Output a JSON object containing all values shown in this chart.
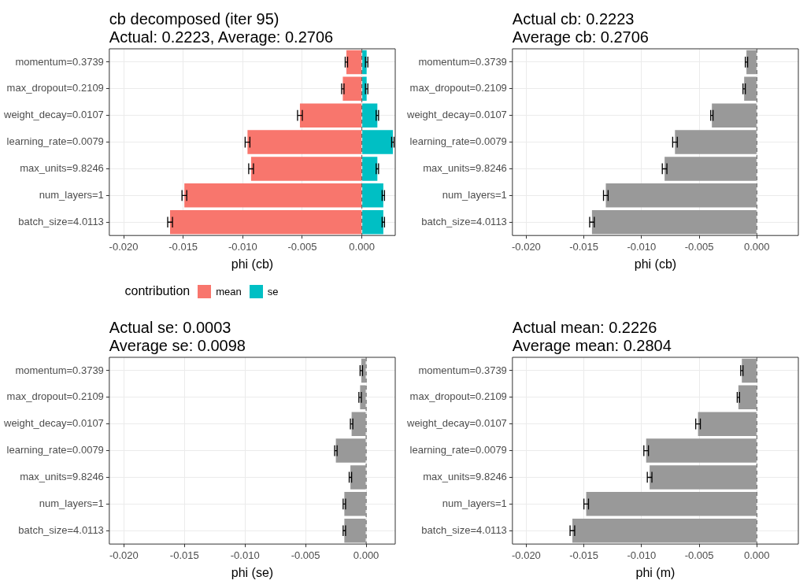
{
  "chart_data": [
    {
      "type": "bar",
      "orientation": "horizontal",
      "stacked": true,
      "title": "cb decomposed (iter 95)\nActual: 0.2223, Average: 0.2706",
      "xlabel": "phi (cb)",
      "legend_title": "contribution",
      "legend": "bottom",
      "grid": true,
      "categories": [
        "momentum=0.3739",
        "max_dropout=0.2109",
        "weight_decay=0.0107",
        "learning_rate=0.0079",
        "max_units=9.8246",
        "num_layers=1",
        "batch_size=4.0113"
      ],
      "series": [
        {
          "name": "mean",
          "color": "#f8766d",
          "values": [
            -0.0013,
            -0.0016,
            -0.0052,
            -0.0096,
            -0.0093,
            -0.0149,
            -0.0161
          ],
          "errors": [
            0.0001,
            0.0001,
            0.0002,
            0.0002,
            0.0002,
            0.0002,
            0.0002
          ]
        },
        {
          "name": "se",
          "color": "#00bfc4",
          "values": [
            0.0004,
            0.0004,
            0.0013,
            0.0026,
            0.0013,
            0.0018,
            0.0018
          ],
          "errors": [
            0.0001,
            0.0001,
            0.0001,
            0.0001,
            0.0001,
            0.0001,
            0.0001
          ]
        }
      ],
      "xlim": [
        -0.0212,
        0.0028
      ],
      "xticks": [
        {
          "value": -0.02,
          "label": "-0.020"
        },
        {
          "value": -0.015,
          "label": "-0.015"
        },
        {
          "value": -0.01,
          "label": "-0.010"
        },
        {
          "value": -0.005,
          "label": "-0.005"
        },
        {
          "value": 0,
          "label": "0.000"
        }
      ],
      "ref_lines": [
        {
          "axis": "x",
          "value": 0,
          "line_style": "dashed",
          "color": "#555555"
        }
      ]
    },
    {
      "type": "bar",
      "orientation": "horizontal",
      "title": "Actual cb: 0.2223\nAverage cb: 0.2706",
      "xlabel": "phi (cb)",
      "grid": true,
      "categories": [
        "momentum=0.3739",
        "max_dropout=0.2109",
        "weight_decay=0.0107",
        "learning_rate=0.0079",
        "max_units=9.8246",
        "num_layers=1",
        "batch_size=4.0113"
      ],
      "series": [
        {
          "color": "#999999",
          "values": [
            -0.0009,
            -0.0011,
            -0.0039,
            -0.0071,
            -0.008,
            -0.0131,
            -0.0143
          ],
          "errors": [
            0.0001,
            0.0001,
            0.0001,
            0.0002,
            0.0002,
            0.0002,
            0.0002
          ]
        }
      ],
      "xlim": [
        -0.0212,
        0.0036
      ],
      "xticks": [
        {
          "value": -0.02,
          "label": "-0.020"
        },
        {
          "value": -0.015,
          "label": "-0.015"
        },
        {
          "value": -0.01,
          "label": "-0.010"
        },
        {
          "value": -0.005,
          "label": "-0.005"
        },
        {
          "value": 0,
          "label": "0.000"
        }
      ],
      "ref_lines": [
        {
          "axis": "x",
          "value": 0,
          "line_style": "dashed",
          "color": "#555555"
        }
      ]
    },
    {
      "type": "bar",
      "orientation": "horizontal",
      "title": "Actual se: 0.0003\nAverage se: 0.0098",
      "xlabel": "phi (se)",
      "grid": true,
      "categories": [
        "momentum=0.3739",
        "max_dropout=0.2109",
        "weight_decay=0.0107",
        "learning_rate=0.0079",
        "max_units=9.8246",
        "num_layers=1",
        "batch_size=4.0113"
      ],
      "series": [
        {
          "color": "#999999",
          "values": [
            -0.0004,
            -0.0005,
            -0.0012,
            -0.0025,
            -0.0013,
            -0.0018,
            -0.0018
          ],
          "errors": [
            0.0001,
            0.0001,
            0.0001,
            0.0001,
            0.0001,
            0.0001,
            0.0001
          ]
        }
      ],
      "xlim": [
        -0.0212,
        0.0024
      ],
      "xticks": [
        {
          "value": -0.02,
          "label": "-0.020"
        },
        {
          "value": -0.015,
          "label": "-0.015"
        },
        {
          "value": -0.01,
          "label": "-0.010"
        },
        {
          "value": -0.005,
          "label": "-0.005"
        },
        {
          "value": 0,
          "label": "0.000"
        }
      ],
      "ref_lines": [
        {
          "axis": "x",
          "value": 0,
          "line_style": "dashed",
          "color": "#555555"
        }
      ]
    },
    {
      "type": "bar",
      "orientation": "horizontal",
      "title": "Actual mean: 0.2226\nAverage mean: 0.2804",
      "xlabel": "phi (m)",
      "grid": true,
      "categories": [
        "momentum=0.3739",
        "max_dropout=0.2109",
        "weight_decay=0.0107",
        "learning_rate=0.0079",
        "max_units=9.8246",
        "num_layers=1",
        "batch_size=4.0113"
      ],
      "series": [
        {
          "color": "#999999",
          "values": [
            -0.0013,
            -0.0016,
            -0.0051,
            -0.0096,
            -0.0093,
            -0.0148,
            -0.016
          ],
          "errors": [
            0.0001,
            0.0001,
            0.0002,
            0.0002,
            0.0002,
            0.0002,
            0.0002
          ]
        }
      ],
      "xlim": [
        -0.0212,
        0.0036
      ],
      "xticks": [
        {
          "value": -0.02,
          "label": "-0.020"
        },
        {
          "value": -0.015,
          "label": "-0.015"
        },
        {
          "value": -0.01,
          "label": "-0.010"
        },
        {
          "value": -0.005,
          "label": "-0.005"
        },
        {
          "value": 0,
          "label": "0.000"
        }
      ],
      "ref_lines": [
        {
          "axis": "x",
          "value": 0,
          "line_style": "dashed",
          "color": "#555555"
        }
      ]
    }
  ]
}
